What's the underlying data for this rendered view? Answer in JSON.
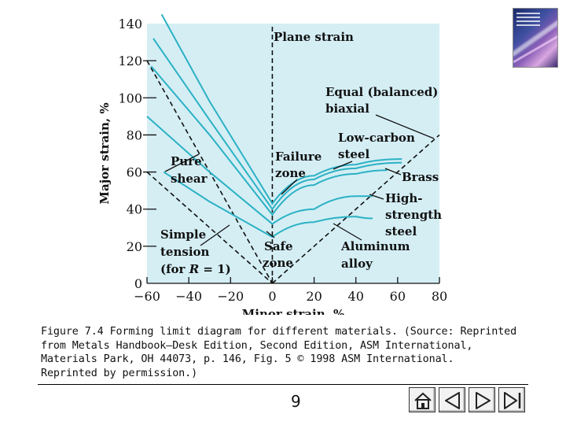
{
  "figure": {
    "caption": "Figure 7.4 Forming limit diagram for different materials. (Source: Reprinted\nfrom Metals Handbook—Desk Edition, Second Edition, ASM International,\nMaterials Park, OH 44073, p. 146, Fig. 5 © 1998 ASM International.\nReprinted by permission.)",
    "annotations": {
      "plane_strain": "Plane strain",
      "equal_1": "Equal (balanced)",
      "equal_2": "biaxial",
      "lowcarbon_1": "Low-carbon",
      "lowcarbon_2": "steel",
      "failure_1": "Failure",
      "failure_2": "zone",
      "brass": "Brass",
      "pure_1": "Pure",
      "pure_2": "shear",
      "hss_1": "High-",
      "hss_2": "strength",
      "hss_3": "steel",
      "simple_1": "Simple",
      "simple_2": "tension",
      "simple_3a": "(for ",
      "simple_3b": "R",
      "simple_3c": " = 1)",
      "safe_1": "Safe",
      "safe_2": "zone",
      "aluminum_1": "Aluminum",
      "aluminum_2": "alloy"
    }
  },
  "page": {
    "number": "9"
  },
  "nav": {
    "buttons": [
      "home-icon",
      "back-icon",
      "forward-icon",
      "end-icon"
    ]
  },
  "colors": {
    "plot_bg": "#d4eef4",
    "curve": "#2bb1c4",
    "text": "#111111"
  },
  "chart_data": {
    "type": "line",
    "xlabel": "Minor strain, %",
    "ylabel": "Major strain, %",
    "xlim": [
      -60,
      80
    ],
    "ylim": [
      0,
      140
    ],
    "xticks": [
      "−60",
      "−40",
      "−20",
      "0",
      "20",
      "40",
      "60",
      "80"
    ],
    "yticks": [
      "0",
      "20",
      "40",
      "60",
      "80",
      "100",
      "120",
      "140"
    ],
    "series": [
      {
        "name": "Low-carbon steel",
        "x": [
          -53,
          -30,
          0,
          20,
          40,
          60,
          62
        ],
        "y": [
          148,
          98,
          43,
          58,
          64,
          67,
          67
        ]
      },
      {
        "name": "Brass",
        "x": [
          -57,
          -30,
          0,
          20,
          40,
          60,
          62
        ],
        "y": [
          132,
          88,
          40,
          56,
          62,
          65,
          65
        ]
      },
      {
        "name": "",
        "x": [
          -58,
          -30,
          0,
          20,
          40,
          55
        ],
        "y": [
          117,
          80,
          37,
          53,
          59,
          61
        ]
      },
      {
        "name": "High-strength steel",
        "x": [
          -60,
          -30,
          0,
          20,
          40,
          48
        ],
        "y": [
          90,
          60,
          32,
          40,
          47,
          47
        ]
      },
      {
        "name": "Aluminum alloy",
        "x": [
          -52,
          -30,
          0,
          20,
          40,
          48
        ],
        "y": [
          60,
          44,
          25,
          33,
          36,
          35
        ]
      }
    ],
    "reference_lines": [
      {
        "name": "Plane strain",
        "x": [
          0,
          0
        ],
        "y": [
          0,
          140
        ]
      },
      {
        "name": "Equal (balanced) biaxial",
        "x": [
          0,
          80
        ],
        "y": [
          0,
          80
        ]
      },
      {
        "name": "Pure shear",
        "x": [
          -60,
          0
        ],
        "y": [
          60,
          0
        ]
      },
      {
        "name": "Simple tension (for R = 1)",
        "x": [
          -60,
          0
        ],
        "y": [
          120,
          0
        ]
      }
    ]
  }
}
